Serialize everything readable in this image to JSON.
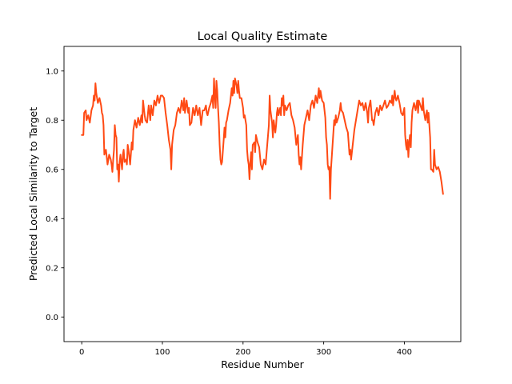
{
  "chart_data": {
    "type": "line",
    "title": "Local Quality Estimate",
    "xlabel": "Residue Number",
    "ylabel": "Predicted Local Similarity to Target",
    "xlim": [
      -22,
      470
    ],
    "ylim": [
      -0.1,
      1.1
    ],
    "xticks": [
      0,
      100,
      200,
      300,
      400
    ],
    "yticks": [
      0.0,
      0.2,
      0.4,
      0.6,
      0.8,
      1.0
    ],
    "xtick_labels": [
      "0",
      "100",
      "200",
      "300",
      "400"
    ],
    "ytick_labels": [
      "0.0",
      "0.2",
      "0.4",
      "0.6",
      "0.8",
      "1.0"
    ],
    "grid": false,
    "series": [
      {
        "color": "#ff4a14",
        "points": [
          [
            0,
            0.74
          ],
          [
            2,
            0.74
          ],
          [
            3,
            0.83
          ],
          [
            5,
            0.84
          ],
          [
            6,
            0.8
          ],
          [
            8,
            0.82
          ],
          [
            10,
            0.79
          ],
          [
            12,
            0.84
          ],
          [
            14,
            0.86
          ],
          [
            15,
            0.9
          ],
          [
            16,
            0.88
          ],
          [
            17,
            0.95
          ],
          [
            18,
            0.91
          ],
          [
            20,
            0.87
          ],
          [
            22,
            0.89
          ],
          [
            24,
            0.86
          ],
          [
            25,
            0.83
          ],
          [
            26,
            0.82
          ],
          [
            27,
            0.78
          ],
          [
            28,
            0.66
          ],
          [
            30,
            0.68
          ],
          [
            32,
            0.62
          ],
          [
            34,
            0.66
          ],
          [
            36,
            0.64
          ],
          [
            37,
            0.62
          ],
          [
            38,
            0.59
          ],
          [
            39,
            0.64
          ],
          [
            40,
            0.68
          ],
          [
            41,
            0.78
          ],
          [
            42,
            0.74
          ],
          [
            43,
            0.73
          ],
          [
            44,
            0.6
          ],
          [
            45,
            0.62
          ],
          [
            46,
            0.55
          ],
          [
            47,
            0.63
          ],
          [
            48,
            0.66
          ],
          [
            50,
            0.6
          ],
          [
            51,
            0.66
          ],
          [
            52,
            0.68
          ],
          [
            53,
            0.63
          ],
          [
            55,
            0.64
          ],
          [
            56,
            0.62
          ],
          [
            57,
            0.7
          ],
          [
            58,
            0.68
          ],
          [
            60,
            0.62
          ],
          [
            62,
            0.71
          ],
          [
            63,
            0.68
          ],
          [
            64,
            0.76
          ],
          [
            66,
            0.8
          ],
          [
            68,
            0.77
          ],
          [
            70,
            0.81
          ],
          [
            72,
            0.78
          ],
          [
            74,
            0.82
          ],
          [
            75,
            0.79
          ],
          [
            76,
            0.88
          ],
          [
            78,
            0.82
          ],
          [
            79,
            0.8
          ],
          [
            81,
            0.79
          ],
          [
            83,
            0.86
          ],
          [
            85,
            0.8
          ],
          [
            86,
            0.86
          ],
          [
            88,
            0.82
          ],
          [
            90,
            0.88
          ],
          [
            92,
            0.86
          ],
          [
            94,
            0.9
          ],
          [
            96,
            0.87
          ],
          [
            98,
            0.9
          ],
          [
            100,
            0.9
          ],
          [
            102,
            0.89
          ],
          [
            104,
            0.83
          ],
          [
            106,
            0.78
          ],
          [
            108,
            0.72
          ],
          [
            110,
            0.68
          ],
          [
            111,
            0.6
          ],
          [
            112,
            0.7
          ],
          [
            114,
            0.76
          ],
          [
            116,
            0.78
          ],
          [
            118,
            0.83
          ],
          [
            120,
            0.85
          ],
          [
            122,
            0.83
          ],
          [
            124,
            0.88
          ],
          [
            126,
            0.84
          ],
          [
            127,
            0.89
          ],
          [
            128,
            0.83
          ],
          [
            130,
            0.88
          ],
          [
            132,
            0.83
          ],
          [
            133,
            0.85
          ],
          [
            134,
            0.78
          ],
          [
            136,
            0.79
          ],
          [
            138,
            0.85
          ],
          [
            140,
            0.82
          ],
          [
            142,
            0.86
          ],
          [
            144,
            0.82
          ],
          [
            146,
            0.85
          ],
          [
            148,
            0.78
          ],
          [
            150,
            0.84
          ],
          [
            152,
            0.84
          ],
          [
            154,
            0.86
          ],
          [
            155,
            0.83
          ],
          [
            156,
            0.82
          ],
          [
            158,
            0.85
          ],
          [
            160,
            0.87
          ],
          [
            162,
            0.9
          ],
          [
            163,
            0.85
          ],
          [
            164,
            0.97
          ],
          [
            165,
            0.9
          ],
          [
            166,
            0.85
          ],
          [
            167,
            0.96
          ],
          [
            168,
            0.92
          ],
          [
            169,
            0.85
          ],
          [
            170,
            0.79
          ],
          [
            171,
            0.7
          ],
          [
            172,
            0.64
          ],
          [
            173,
            0.62
          ],
          [
            174,
            0.63
          ],
          [
            176,
            0.72
          ],
          [
            177,
            0.77
          ],
          [
            178,
            0.73
          ],
          [
            179,
            0.79
          ],
          [
            180,
            0.8
          ],
          [
            182,
            0.84
          ],
          [
            184,
            0.87
          ],
          [
            186,
            0.93
          ],
          [
            187,
            0.9
          ],
          [
            188,
            0.96
          ],
          [
            189,
            0.91
          ],
          [
            190,
            0.97
          ],
          [
            192,
            0.94
          ],
          [
            193,
            0.91
          ],
          [
            194,
            0.96
          ],
          [
            195,
            0.92
          ],
          [
            196,
            0.89
          ],
          [
            198,
            0.89
          ],
          [
            200,
            0.85
          ],
          [
            201,
            0.81
          ],
          [
            202,
            0.82
          ],
          [
            204,
            0.78
          ],
          [
            205,
            0.68
          ],
          [
            206,
            0.64
          ],
          [
            207,
            0.62
          ],
          [
            208,
            0.56
          ],
          [
            209,
            0.63
          ],
          [
            210,
            0.67
          ],
          [
            211,
            0.6
          ],
          [
            212,
            0.7
          ],
          [
            214,
            0.71
          ],
          [
            215,
            0.67
          ],
          [
            216,
            0.74
          ],
          [
            218,
            0.71
          ],
          [
            220,
            0.69
          ],
          [
            222,
            0.62
          ],
          [
            224,
            0.6
          ],
          [
            226,
            0.64
          ],
          [
            228,
            0.62
          ],
          [
            230,
            0.7
          ],
          [
            232,
            0.78
          ],
          [
            233,
            0.9
          ],
          [
            234,
            0.84
          ],
          [
            236,
            0.79
          ],
          [
            237,
            0.73
          ],
          [
            238,
            0.8
          ],
          [
            240,
            0.75
          ],
          [
            241,
            0.78
          ],
          [
            242,
            0.83
          ],
          [
            243,
            0.85
          ],
          [
            244,
            0.82
          ],
          [
            246,
            0.85
          ],
          [
            247,
            0.82
          ],
          [
            248,
            0.89
          ],
          [
            249,
            0.86
          ],
          [
            250,
            0.9
          ],
          [
            251,
            0.82
          ],
          [
            252,
            0.86
          ],
          [
            254,
            0.84
          ],
          [
            256,
            0.86
          ],
          [
            258,
            0.87
          ],
          [
            260,
            0.82
          ],
          [
            262,
            0.8
          ],
          [
            264,
            0.77
          ],
          [
            266,
            0.7
          ],
          [
            268,
            0.74
          ],
          [
            269,
            0.66
          ],
          [
            270,
            0.62
          ],
          [
            271,
            0.65
          ],
          [
            272,
            0.6
          ],
          [
            274,
            0.7
          ],
          [
            276,
            0.78
          ],
          [
            278,
            0.81
          ],
          [
            280,
            0.84
          ],
          [
            282,
            0.8
          ],
          [
            284,
            0.86
          ],
          [
            286,
            0.88
          ],
          [
            288,
            0.85
          ],
          [
            290,
            0.9
          ],
          [
            292,
            0.87
          ],
          [
            294,
            0.93
          ],
          [
            295,
            0.89
          ],
          [
            296,
            0.92
          ],
          [
            298,
            0.88
          ],
          [
            300,
            0.87
          ],
          [
            302,
            0.81
          ],
          [
            303,
            0.73
          ],
          [
            304,
            0.7
          ],
          [
            305,
            0.62
          ],
          [
            306,
            0.6
          ],
          [
            307,
            0.61
          ],
          [
            308,
            0.48
          ],
          [
            309,
            0.6
          ],
          [
            310,
            0.65
          ],
          [
            312,
            0.75
          ],
          [
            313,
            0.8
          ],
          [
            314,
            0.78
          ],
          [
            315,
            0.82
          ],
          [
            316,
            0.79
          ],
          [
            318,
            0.81
          ],
          [
            320,
            0.84
          ],
          [
            321,
            0.87
          ],
          [
            322,
            0.84
          ],
          [
            324,
            0.83
          ],
          [
            326,
            0.8
          ],
          [
            328,
            0.77
          ],
          [
            330,
            0.75
          ],
          [
            332,
            0.66
          ],
          [
            333,
            0.68
          ],
          [
            334,
            0.64
          ],
          [
            336,
            0.7
          ],
          [
            338,
            0.76
          ],
          [
            340,
            0.8
          ],
          [
            342,
            0.84
          ],
          [
            344,
            0.88
          ],
          [
            346,
            0.86
          ],
          [
            348,
            0.87
          ],
          [
            350,
            0.84
          ],
          [
            352,
            0.87
          ],
          [
            354,
            0.83
          ],
          [
            355,
            0.79
          ],
          [
            356,
            0.85
          ],
          [
            358,
            0.88
          ],
          [
            360,
            0.8
          ],
          [
            361,
            0.8
          ],
          [
            362,
            0.78
          ],
          [
            364,
            0.83
          ],
          [
            366,
            0.85
          ],
          [
            368,
            0.82
          ],
          [
            370,
            0.86
          ],
          [
            372,
            0.84
          ],
          [
            374,
            0.86
          ],
          [
            376,
            0.88
          ],
          [
            378,
            0.85
          ],
          [
            380,
            0.86
          ],
          [
            382,
            0.88
          ],
          [
            384,
            0.87
          ],
          [
            385,
            0.9
          ],
          [
            386,
            0.86
          ],
          [
            388,
            0.92
          ],
          [
            389,
            0.89
          ],
          [
            390,
            0.88
          ],
          [
            392,
            0.9
          ],
          [
            394,
            0.87
          ],
          [
            396,
            0.83
          ],
          [
            398,
            0.82
          ],
          [
            400,
            0.85
          ],
          [
            401,
            0.74
          ],
          [
            402,
            0.7
          ],
          [
            403,
            0.68
          ],
          [
            404,
            0.72
          ],
          [
            405,
            0.65
          ],
          [
            406,
            0.71
          ],
          [
            407,
            0.74
          ],
          [
            408,
            0.69
          ],
          [
            409,
            0.79
          ],
          [
            410,
            0.84
          ],
          [
            412,
            0.87
          ],
          [
            414,
            0.84
          ],
          [
            416,
            0.88
          ],
          [
            417,
            0.83
          ],
          [
            418,
            0.88
          ],
          [
            420,
            0.86
          ],
          [
            422,
            0.84
          ],
          [
            423,
            0.89
          ],
          [
            424,
            0.84
          ],
          [
            426,
            0.8
          ],
          [
            428,
            0.84
          ],
          [
            429,
            0.79
          ],
          [
            430,
            0.83
          ],
          [
            432,
            0.73
          ],
          [
            433,
            0.6
          ],
          [
            434,
            0.6
          ],
          [
            436,
            0.59
          ],
          [
            437,
            0.68
          ],
          [
            438,
            0.62
          ],
          [
            440,
            0.6
          ],
          [
            442,
            0.61
          ],
          [
            444,
            0.59
          ],
          [
            446,
            0.55
          ],
          [
            448,
            0.5
          ]
        ]
      }
    ]
  }
}
